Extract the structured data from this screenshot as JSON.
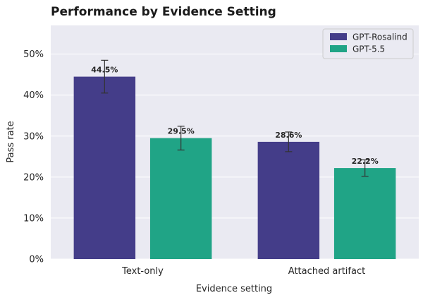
{
  "chart_data": {
    "type": "bar",
    "title": "Performance by Evidence Setting",
    "xlabel": "Evidence setting",
    "ylabel": "Pass rate",
    "categories": [
      "Text-only",
      "Attached artifact"
    ],
    "ylim": [
      0,
      0.57
    ],
    "yticks": [
      0,
      0.1,
      0.2,
      0.3,
      0.4,
      0.5
    ],
    "ytick_labels": [
      "0%",
      "10%",
      "20%",
      "30%",
      "40%",
      "50%"
    ],
    "grid": true,
    "legend_position": "top-right",
    "series": [
      {
        "name": "GPT-Rosalind",
        "color": "#443d89",
        "values": [
          0.445,
          0.286
        ],
        "errors": [
          [
            0.405,
            0.485
          ],
          [
            0.262,
            0.31
          ]
        ],
        "labels": [
          "44.5%",
          "28.6%"
        ]
      },
      {
        "name": "GPT-5.5",
        "color": "#20a486",
        "values": [
          0.295,
          0.222
        ],
        "errors": [
          [
            0.266,
            0.324
          ],
          [
            0.202,
            0.242
          ]
        ],
        "labels": [
          "29.5%",
          "22.2%"
        ]
      }
    ]
  }
}
